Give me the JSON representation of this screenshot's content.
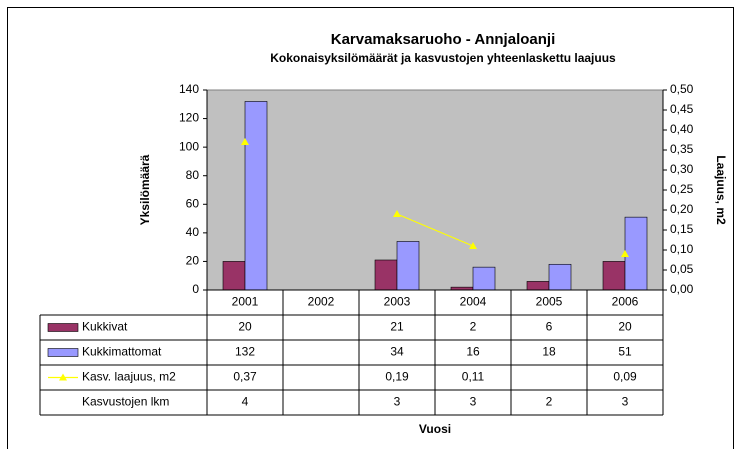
{
  "chart_data": {
    "type": "bar",
    "title": "Karvamaksaruoho - Annjaloanji",
    "subtitle": "Kokonaisyksilömäärät ja kasvustojen yhteenlaskettu laajuus",
    "y_label": "Yksilömäärä",
    "y2_label": "Laajuus, m2",
    "x_label": "Vuosi",
    "categories": [
      "2001",
      "2002",
      "2003",
      "2004",
      "2005",
      "2006"
    ],
    "series": [
      {
        "name": "Kukkivat",
        "color": "#993366",
        "type": "bar",
        "values": [
          20,
          null,
          21,
          2,
          6,
          20
        ]
      },
      {
        "name": "Kukkimattomat",
        "color": "#9999ff",
        "type": "bar",
        "values": [
          132,
          null,
          34,
          16,
          18,
          51
        ]
      },
      {
        "name": "Kasv. laajuus, m2",
        "color": "#ffff00",
        "type": "line",
        "axis": "y2",
        "values": [
          0.37,
          null,
          0.19,
          0.11,
          null,
          0.09
        ],
        "value_labels": [
          "0,37",
          null,
          "0,19",
          "0,11",
          null,
          "0,09"
        ]
      },
      {
        "name": "Kasvustojen lkm",
        "type": "table",
        "values": [
          4,
          null,
          3,
          3,
          2,
          3
        ]
      }
    ],
    "ylim": [
      0,
      140
    ],
    "yticks": [
      0,
      20,
      40,
      60,
      80,
      100,
      120,
      140
    ],
    "y2lim": [
      0,
      0.5
    ],
    "y2ticks": [
      {
        "value": 0,
        "label": "0,00"
      },
      {
        "value": 0.05,
        "label": "0,05"
      },
      {
        "value": 0.1,
        "label": "0,10"
      },
      {
        "value": 0.15,
        "label": "0,15"
      },
      {
        "value": 0.2,
        "label": "0,20"
      },
      {
        "value": 0.25,
        "label": "0,25"
      },
      {
        "value": 0.3,
        "label": "0,30"
      },
      {
        "value": 0.35,
        "label": "0,35"
      },
      {
        "value": 0.4,
        "label": "0,40"
      },
      {
        "value": 0.45,
        "label": "0,45"
      },
      {
        "value": 0.5,
        "label": "0,50"
      }
    ],
    "plot_background": "#c0c0c0"
  }
}
